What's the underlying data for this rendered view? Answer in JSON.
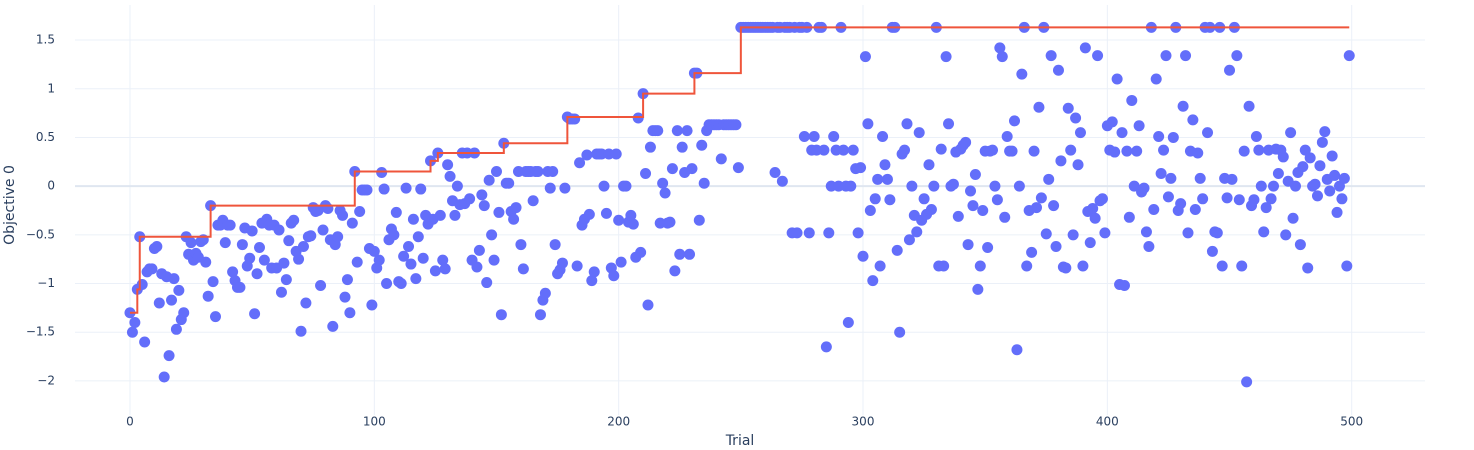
{
  "chart_data": {
    "type": "scatter",
    "x_label": "Trial",
    "y_label": "Objective 0",
    "xlim": [
      -22.5,
      530
    ],
    "ylim": [
      -2.35,
      1.86
    ],
    "xticks": [
      0,
      100,
      200,
      300,
      400,
      500
    ],
    "yticks": [
      {
        "value": -2,
        "label": "−2"
      },
      {
        "value": -1.5,
        "label": "−1.5"
      },
      {
        "value": -1,
        "label": "−1"
      },
      {
        "value": -0.5,
        "label": "−0.5"
      },
      0,
      0.5,
      1,
      1.5
    ],
    "grid": true,
    "series": [
      {
        "type": "scatter",
        "color": "#636efa",
        "x": [
          0,
          1,
          2,
          3,
          4,
          5,
          6,
          7,
          8,
          9,
          10,
          11,
          12,
          13,
          14,
          15,
          16,
          17,
          18,
          19,
          20,
          21,
          22,
          23,
          24,
          25,
          26,
          27,
          28,
          29,
          30,
          31,
          32,
          33,
          34,
          35,
          36,
          37,
          38,
          39,
          40,
          41,
          42,
          43,
          44,
          45,
          46,
          47,
          48,
          49,
          50,
          51,
          52,
          53,
          54,
          55,
          56,
          57,
          58,
          59,
          60,
          61,
          62,
          63,
          64,
          65,
          66,
          67,
          68,
          69,
          70,
          71,
          72,
          73,
          74,
          75,
          76,
          77,
          78,
          79,
          80,
          81,
          82,
          83,
          84,
          85,
          86,
          87,
          88,
          89,
          90,
          91,
          92,
          93,
          94,
          95,
          96,
          97,
          98,
          99,
          100,
          101,
          102,
          103,
          104,
          105,
          106,
          107,
          108,
          109,
          110,
          111,
          112,
          113,
          114,
          115,
          116,
          117,
          118,
          119,
          120,
          121,
          122,
          123,
          124,
          125,
          126,
          127,
          128,
          129,
          130,
          131,
          132,
          133,
          134,
          135,
          136,
          137,
          138,
          139,
          140,
          141,
          142,
          143,
          144,
          145,
          146,
          147,
          148,
          149,
          150,
          151,
          152,
          153,
          154,
          155,
          156,
          157,
          158,
          159,
          160,
          161,
          162,
          163,
          164,
          165,
          166,
          167,
          168,
          169,
          170,
          171,
          172,
          173,
          174,
          175,
          176,
          177,
          178,
          179,
          180,
          181,
          182,
          183,
          184,
          185,
          186,
          187,
          188,
          189,
          190,
          191,
          192,
          193,
          194,
          195,
          196,
          197,
          198,
          199,
          200,
          201,
          202,
          203,
          204,
          205,
          206,
          207,
          208,
          209,
          210,
          211,
          212,
          213,
          214,
          215,
          216,
          217,
          218,
          219,
          220,
          221,
          222,
          223,
          224,
          225,
          226,
          227,
          228,
          229,
          230,
          231,
          232,
          233,
          234,
          235,
          236,
          237,
          238,
          239,
          240,
          241,
          242,
          243,
          244,
          245,
          246,
          247,
          248,
          249,
          250,
          251,
          252,
          253,
          254,
          255,
          256,
          257,
          258,
          259,
          260,
          261,
          262,
          263,
          264,
          265,
          266,
          267,
          268,
          269,
          270,
          271,
          272,
          273,
          274,
          275,
          276,
          277,
          278,
          279,
          280,
          281,
          282,
          283,
          284,
          285,
          286,
          287,
          288,
          289,
          290,
          291,
          292,
          293,
          294,
          295,
          296,
          297,
          298,
          299,
          300,
          301,
          302,
          303,
          304,
          305,
          306,
          307,
          308,
          309,
          310,
          311,
          312,
          313,
          314,
          315,
          316,
          317,
          318,
          319,
          320,
          321,
          322,
          323,
          324,
          325,
          326,
          327,
          328,
          329,
          330,
          331,
          332,
          333,
          334,
          335,
          336,
          337,
          338,
          339,
          340,
          341,
          342,
          343,
          344,
          345,
          346,
          347,
          348,
          349,
          350,
          351,
          352,
          353,
          354,
          355,
          356,
          357,
          358,
          359,
          360,
          361,
          362,
          363,
          364,
          365,
          366,
          367,
          368,
          369,
          370,
          371,
          372,
          373,
          374,
          375,
          376,
          377,
          378,
          379,
          380,
          381,
          382,
          383,
          384,
          385,
          386,
          387,
          388,
          389,
          390,
          391,
          392,
          393,
          394,
          395,
          396,
          397,
          398,
          399,
          400,
          401,
          402,
          403,
          404,
          405,
          406,
          407,
          408,
          409,
          410,
          411,
          412,
          413,
          414,
          415,
          416,
          417,
          418,
          419,
          420,
          421,
          422,
          423,
          424,
          425,
          426,
          427,
          428,
          429,
          430,
          431,
          432,
          433,
          434,
          435,
          436,
          437,
          438,
          439,
          440,
          441,
          442,
          443,
          444,
          445,
          446,
          447,
          448,
          449,
          450,
          451,
          452,
          453,
          454,
          455,
          456,
          457,
          458,
          459,
          460,
          461,
          462,
          463,
          464,
          465,
          466,
          467,
          468,
          469,
          470,
          471,
          472,
          473,
          474,
          475,
          476,
          477,
          478,
          479,
          480,
          481,
          482,
          483,
          484,
          485,
          486,
          487,
          488,
          489,
          490,
          491,
          492,
          493,
          494,
          495,
          496,
          497,
          498,
          499
        ],
        "values": [
          -1.3,
          -1.5,
          -1.4,
          -1.06,
          -0.52,
          -1.01,
          -1.6,
          -0.88,
          -0.85,
          -0.85,
          -0.64,
          -0.62,
          -1.2,
          -0.9,
          -1.96,
          -0.93,
          -1.74,
          -1.17,
          -0.95,
          -1.47,
          -1.07,
          -1.37,
          -1.3,
          -0.52,
          -0.7,
          -0.58,
          -0.76,
          -0.69,
          -0.73,
          -0.57,
          -0.55,
          -0.78,
          -1.13,
          -0.2,
          -0.98,
          -1.34,
          -0.4,
          -0.4,
          -0.35,
          -0.58,
          -0.4,
          -0.4,
          -0.88,
          -0.97,
          -1.04,
          -1.04,
          -0.6,
          -0.43,
          -0.82,
          -0.74,
          -0.46,
          -1.31,
          -0.9,
          -0.63,
          -0.38,
          -0.76,
          -0.34,
          -0.4,
          -0.84,
          -0.4,
          -0.84,
          -0.45,
          -1.09,
          -0.79,
          -0.96,
          -0.56,
          -0.38,
          -0.35,
          -0.67,
          -0.75,
          -1.49,
          -0.62,
          -1.2,
          -0.52,
          -0.51,
          -0.22,
          -0.26,
          -0.25,
          -1.02,
          -0.45,
          -0.2,
          -0.23,
          -0.55,
          -1.44,
          -0.6,
          -0.52,
          -0.25,
          -0.3,
          -1.14,
          -0.96,
          -1.3,
          -0.38,
          0.15,
          -0.78,
          -0.26,
          -0.04,
          -0.04,
          -0.04,
          -0.64,
          -1.22,
          -0.67,
          -0.84,
          -0.76,
          0.14,
          -0.03,
          -1.0,
          -0.55,
          -0.44,
          -0.5,
          -0.27,
          -0.98,
          -1.0,
          -0.72,
          -0.02,
          -0.62,
          -0.8,
          -0.34,
          -0.95,
          -0.52,
          -0.03,
          -0.74,
          -0.3,
          -0.39,
          0.26,
          -0.34,
          -0.87,
          0.34,
          -0.3,
          -0.76,
          -0.85,
          0.22,
          0.1,
          -0.15,
          -0.3,
          0.0,
          -0.19,
          0.34,
          -0.18,
          0.34,
          -0.13,
          -0.76,
          0.34,
          -0.83,
          -0.66,
          -0.09,
          -0.2,
          -0.99,
          0.06,
          -0.5,
          -0.76,
          0.15,
          -0.27,
          -1.32,
          0.44,
          0.03,
          0.03,
          -0.26,
          -0.34,
          -0.22,
          0.15,
          -0.6,
          -0.85,
          0.15,
          0.15,
          0.15,
          -0.15,
          0.15,
          0.15,
          -1.32,
          -1.17,
          -1.1,
          0.15,
          -0.02,
          0.15,
          -0.6,
          -0.9,
          -0.86,
          -0.79,
          -0.02,
          0.71,
          0.69,
          0.69,
          0.69,
          -0.82,
          0.24,
          -0.4,
          -0.34,
          0.32,
          -0.29,
          -0.97,
          -0.88,
          0.33,
          0.33,
          0.33,
          0.0,
          -0.28,
          0.33,
          -0.84,
          -0.92,
          0.33,
          -0.35,
          -0.78,
          0.0,
          0.0,
          -0.37,
          -0.3,
          -0.39,
          -0.73,
          0.7,
          -0.68,
          0.95,
          0.13,
          -1.22,
          0.4,
          0.57,
          0.57,
          0.57,
          -0.38,
          0.03,
          -0.07,
          -0.38,
          -0.37,
          0.18,
          -0.87,
          0.57,
          -0.7,
          0.4,
          0.14,
          0.57,
          -0.7,
          0.18,
          1.16,
          1.16,
          -0.35,
          0.42,
          0.03,
          0.57,
          0.63,
          0.63,
          0.63,
          0.63,
          0.63,
          0.28,
          0.63,
          0.63,
          0.63,
          0.63,
          0.63,
          0.63,
          0.19,
          1.63,
          1.63,
          1.63,
          1.63,
          1.63,
          1.63,
          1.63,
          1.63,
          1.63,
          1.63,
          1.63,
          1.63,
          1.63,
          1.63,
          0.14,
          1.63,
          1.63,
          0.05,
          1.63,
          1.63,
          1.63,
          -0.48,
          1.63,
          -0.48,
          1.63,
          1.63,
          0.51,
          1.63,
          -0.48,
          0.37,
          0.51,
          0.37,
          1.63,
          1.63,
          0.37,
          -1.65,
          -0.48,
          0.0,
          0.51,
          0.37,
          0.0,
          1.63,
          0.37,
          0.0,
          -1.4,
          0.0,
          0.37,
          0.18,
          -0.48,
          0.19,
          -0.72,
          1.33,
          0.64,
          -0.25,
          -0.97,
          -0.13,
          0.07,
          -0.82,
          0.51,
          0.22,
          0.07,
          -0.14,
          1.63,
          1.63,
          -0.66,
          -1.5,
          0.33,
          0.37,
          0.64,
          -0.55,
          0.0,
          -0.3,
          -0.47,
          0.55,
          -0.35,
          -0.13,
          -0.29,
          0.22,
          -0.24,
          0.0,
          1.63,
          -0.82,
          0.38,
          -0.82,
          1.33,
          0.64,
          0.0,
          0.02,
          0.35,
          -0.31,
          0.38,
          0.42,
          0.45,
          -0.6,
          -0.05,
          -0.2,
          0.12,
          -1.06,
          -0.82,
          -0.25,
          0.36,
          -0.63,
          0.36,
          0.37,
          0.0,
          -0.14,
          1.42,
          1.33,
          -0.32,
          0.51,
          0.36,
          0.36,
          0.67,
          -1.68,
          0.0,
          1.15,
          1.63,
          -0.82,
          -0.25,
          -0.68,
          0.36,
          -0.22,
          0.81,
          -0.12,
          1.63,
          -0.49,
          0.07,
          1.34,
          -0.2,
          -0.62,
          1.19,
          0.26,
          -0.83,
          -0.84,
          0.8,
          0.37,
          -0.5,
          0.7,
          0.22,
          0.55,
          -0.82,
          1.42,
          -0.26,
          -0.58,
          -0.23,
          -0.33,
          1.34,
          -0.15,
          -0.13,
          -0.48,
          0.62,
          0.37,
          0.66,
          0.35,
          1.1,
          -1.01,
          0.55,
          -1.02,
          0.36,
          -0.32,
          0.88,
          0.0,
          0.36,
          0.62,
          -0.06,
          -0.02,
          -0.47,
          -0.62,
          1.63,
          -0.24,
          1.1,
          0.51,
          0.13,
          0.37,
          1.34,
          -0.11,
          0.08,
          0.5,
          1.63,
          -0.25,
          -0.18,
          0.82,
          1.34,
          -0.48,
          0.36,
          0.68,
          -0.24,
          0.34,
          0.08,
          -0.13,
          1.63,
          0.55,
          1.63,
          -0.67,
          -0.47,
          -0.48,
          1.63,
          -0.82,
          0.08,
          -0.12,
          1.19,
          0.07,
          1.63,
          1.34,
          -0.14,
          -0.82,
          0.36,
          -2.01,
          0.82,
          -0.2,
          -0.14,
          0.51,
          0.37,
          0.0,
          -0.47,
          -0.22,
          0.37,
          -0.13,
          0.0,
          0.38,
          0.13,
          0.37,
          0.3,
          -0.5,
          0.05,
          0.55,
          -0.33,
          0.0,
          0.14,
          -0.6,
          0.2,
          0.37,
          -0.84,
          0.29,
          0.0,
          0.02,
          -0.1,
          0.21,
          0.45,
          0.56,
          0.07,
          -0.05,
          0.31,
          0.11,
          -0.27,
          0.0,
          -0.13,
          0.08,
          -0.82,
          1.34
        ]
      },
      {
        "type": "step",
        "color": "#ef553b",
        "x": [
          0,
          3,
          4,
          33,
          92,
          123,
          126,
          153,
          179,
          210,
          231,
          250,
          499
        ],
        "values": [
          -1.3,
          -1.06,
          -0.52,
          -0.2,
          0.15,
          0.26,
          0.34,
          0.44,
          0.71,
          0.95,
          1.16,
          1.63,
          1.63
        ]
      }
    ]
  }
}
